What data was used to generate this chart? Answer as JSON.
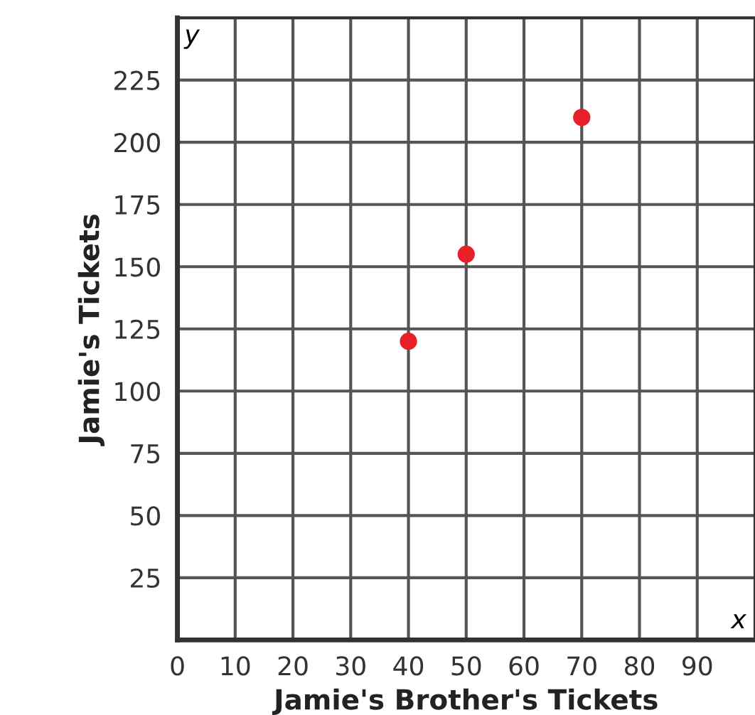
{
  "chart_data": {
    "type": "scatter",
    "xlabel": "Jamie's Brother's Tickets",
    "ylabel": "Jamie's Tickets",
    "x": [
      40,
      50,
      70
    ],
    "series": [
      {
        "color": "#e8202a",
        "values": [
          120,
          155,
          210
        ]
      }
    ],
    "xlim": [
      0,
      100
    ],
    "ylim": [
      0,
      250
    ],
    "xticks": [
      0,
      10,
      20,
      30,
      40,
      50,
      60,
      70,
      80,
      90
    ],
    "yticks": [
      25,
      50,
      75,
      100,
      125,
      150,
      175,
      200,
      225
    ],
    "grid": true,
    "marker": "circle",
    "annotations": [
      "x",
      "y"
    ]
  }
}
